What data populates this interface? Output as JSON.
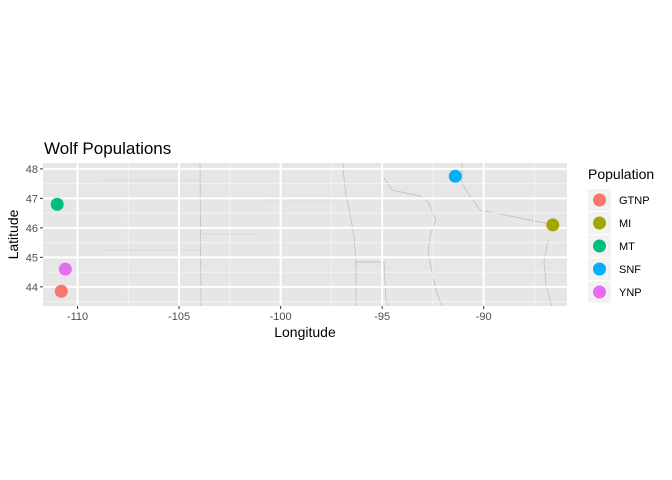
{
  "chart_data": {
    "type": "scatter",
    "title": "Wolf Populations",
    "xlabel": "Longitude",
    "ylabel": "Latitude",
    "xlim": [
      -111.7,
      -85.9
    ],
    "ylim": [
      43.35,
      48.2
    ],
    "x_ticks": [
      -110,
      -105,
      -100,
      -95,
      -90
    ],
    "x_tick_labels": [
      "-110",
      "-105",
      "-100",
      "-95",
      "-90"
    ],
    "y_ticks": [
      44,
      45,
      46,
      47,
      48
    ],
    "y_tick_labels": [
      "44",
      "45",
      "46",
      "47",
      "48"
    ],
    "grid": true,
    "background": "basemap (light grey, US state/county borders)",
    "legend": {
      "title": "Population",
      "position": "right"
    },
    "series": [
      {
        "name": "GTNP",
        "color": "#F8766D",
        "x": [
          -110.8
        ],
        "y": [
          43.85
        ]
      },
      {
        "name": "MI",
        "color": "#A3A500",
        "x": [
          -86.6
        ],
        "y": [
          46.1
        ]
      },
      {
        "name": "MT",
        "color": "#00BF7D",
        "x": [
          -111.0
        ],
        "y": [
          46.8
        ]
      },
      {
        "name": "SNF",
        "color": "#00B0F6",
        "x": [
          -91.4
        ],
        "y": [
          47.75
        ]
      },
      {
        "name": "YNP",
        "color": "#E76BF3",
        "x": [
          -110.6
        ],
        "y": [
          44.6
        ]
      }
    ]
  }
}
